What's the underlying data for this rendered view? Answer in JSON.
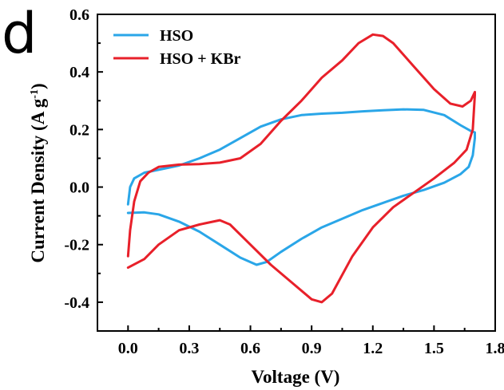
{
  "panel_label": "d",
  "chart_data": {
    "type": "line",
    "xlabel": "Voltage (V)",
    "ylabel_main": "Current Density (A g",
    "ylabel_sup": "-1",
    "ylabel_close": ")",
    "xlim": [
      -0.15,
      1.8
    ],
    "ylim": [
      -0.5,
      0.6
    ],
    "xticks": [
      0.0,
      0.3,
      0.6,
      0.9,
      1.2,
      1.5,
      1.8
    ],
    "xtick_labels": [
      "0.0",
      "0.3",
      "0.6",
      "0.9",
      "1.2",
      "1.5",
      "1.8"
    ],
    "yticks": [
      -0.4,
      -0.2,
      0.0,
      0.2,
      0.4,
      0.6
    ],
    "ytick_labels": [
      "-0.4",
      "-0.2",
      "0.0",
      "0.2",
      "0.4",
      "0.6"
    ],
    "legend_position": "top-left",
    "grid": false,
    "series": [
      {
        "name": "HSO",
        "color": "#2aa6e8",
        "points": [
          [
            0.0,
            -0.06
          ],
          [
            0.01,
            0.0
          ],
          [
            0.03,
            0.03
          ],
          [
            0.08,
            0.05
          ],
          [
            0.15,
            0.06
          ],
          [
            0.25,
            0.075
          ],
          [
            0.35,
            0.1
          ],
          [
            0.45,
            0.13
          ],
          [
            0.55,
            0.17
          ],
          [
            0.65,
            0.21
          ],
          [
            0.75,
            0.235
          ],
          [
            0.85,
            0.25
          ],
          [
            0.95,
            0.255
          ],
          [
            1.05,
            0.258
          ],
          [
            1.15,
            0.263
          ],
          [
            1.25,
            0.267
          ],
          [
            1.35,
            0.27
          ],
          [
            1.45,
            0.268
          ],
          [
            1.55,
            0.25
          ],
          [
            1.63,
            0.215
          ],
          [
            1.68,
            0.195
          ],
          [
            1.7,
            0.19
          ],
          [
            1.7,
            0.17
          ],
          [
            1.69,
            0.11
          ],
          [
            1.67,
            0.07
          ],
          [
            1.63,
            0.045
          ],
          [
            1.55,
            0.015
          ],
          [
            1.45,
            -0.01
          ],
          [
            1.35,
            -0.03
          ],
          [
            1.25,
            -0.055
          ],
          [
            1.15,
            -0.08
          ],
          [
            1.05,
            -0.11
          ],
          [
            0.95,
            -0.14
          ],
          [
            0.85,
            -0.18
          ],
          [
            0.75,
            -0.225
          ],
          [
            0.68,
            -0.26
          ],
          [
            0.63,
            -0.27
          ],
          [
            0.55,
            -0.245
          ],
          [
            0.45,
            -0.2
          ],
          [
            0.35,
            -0.155
          ],
          [
            0.25,
            -0.12
          ],
          [
            0.15,
            -0.095
          ],
          [
            0.08,
            -0.088
          ],
          [
            0.0,
            -0.09
          ]
        ]
      },
      {
        "name": "HSO + KBr",
        "color": "#e8202a",
        "points": [
          [
            0.0,
            -0.24
          ],
          [
            0.01,
            -0.15
          ],
          [
            0.03,
            -0.05
          ],
          [
            0.06,
            0.02
          ],
          [
            0.1,
            0.05
          ],
          [
            0.15,
            0.07
          ],
          [
            0.25,
            0.078
          ],
          [
            0.35,
            0.08
          ],
          [
            0.45,
            0.085
          ],
          [
            0.55,
            0.1
          ],
          [
            0.65,
            0.15
          ],
          [
            0.75,
            0.23
          ],
          [
            0.85,
            0.3
          ],
          [
            0.95,
            0.38
          ],
          [
            1.05,
            0.44
          ],
          [
            1.13,
            0.5
          ],
          [
            1.2,
            0.53
          ],
          [
            1.25,
            0.525
          ],
          [
            1.3,
            0.5
          ],
          [
            1.4,
            0.42
          ],
          [
            1.5,
            0.34
          ],
          [
            1.58,
            0.29
          ],
          [
            1.64,
            0.28
          ],
          [
            1.68,
            0.3
          ],
          [
            1.7,
            0.33
          ],
          [
            1.7,
            0.32
          ],
          [
            1.69,
            0.2
          ],
          [
            1.66,
            0.13
          ],
          [
            1.6,
            0.085
          ],
          [
            1.5,
            0.03
          ],
          [
            1.4,
            -0.02
          ],
          [
            1.3,
            -0.07
          ],
          [
            1.2,
            -0.14
          ],
          [
            1.1,
            -0.24
          ],
          [
            1.0,
            -0.37
          ],
          [
            0.95,
            -0.4
          ],
          [
            0.9,
            -0.39
          ],
          [
            0.8,
            -0.33
          ],
          [
            0.7,
            -0.27
          ],
          [
            0.6,
            -0.2
          ],
          [
            0.5,
            -0.13
          ],
          [
            0.45,
            -0.115
          ],
          [
            0.35,
            -0.13
          ],
          [
            0.25,
            -0.15
          ],
          [
            0.15,
            -0.2
          ],
          [
            0.08,
            -0.25
          ],
          [
            0.0,
            -0.28
          ]
        ]
      }
    ]
  }
}
